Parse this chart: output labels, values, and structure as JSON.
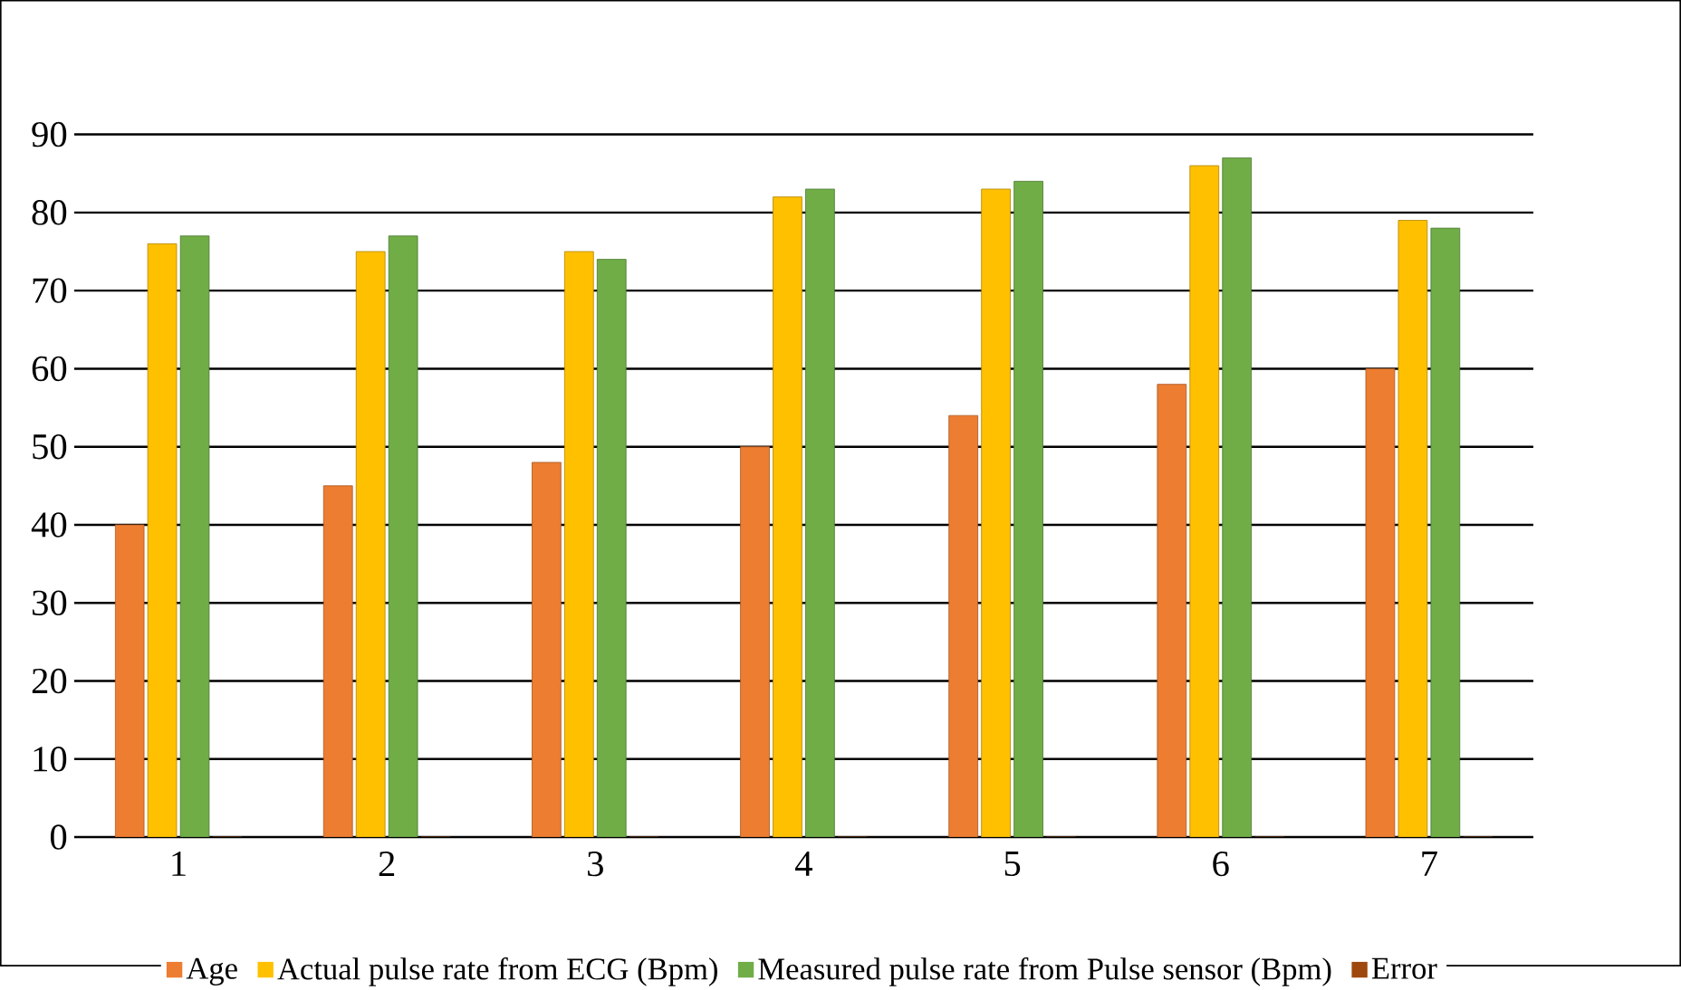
{
  "chart_data": {
    "type": "bar",
    "categories": [
      "1",
      "2",
      "3",
      "4",
      "5",
      "6",
      "7"
    ],
    "series": [
      {
        "name": "Age",
        "color": "#ed7d31",
        "values": [
          40,
          45,
          48,
          50,
          54,
          58,
          60
        ]
      },
      {
        "name": "Actual pulse rate from ECG (Bpm)",
        "color": "#ffc000",
        "values": [
          76,
          75,
          75,
          82,
          83,
          86,
          79
        ]
      },
      {
        "name": "Measured pulse rate from Pulse sensor (Bpm)",
        "color": "#70ad47",
        "values": [
          77,
          77,
          74,
          83,
          84,
          87,
          78
        ]
      },
      {
        "name": "Error",
        "color": "#9e480e",
        "values": [
          0,
          0,
          0,
          0,
          0,
          0,
          0
        ]
      }
    ],
    "ylim": [
      0,
      90
    ],
    "yticks": [
      0,
      10,
      20,
      30,
      40,
      50,
      60,
      70,
      80,
      90
    ],
    "grid": "y",
    "legend": "bottom"
  }
}
